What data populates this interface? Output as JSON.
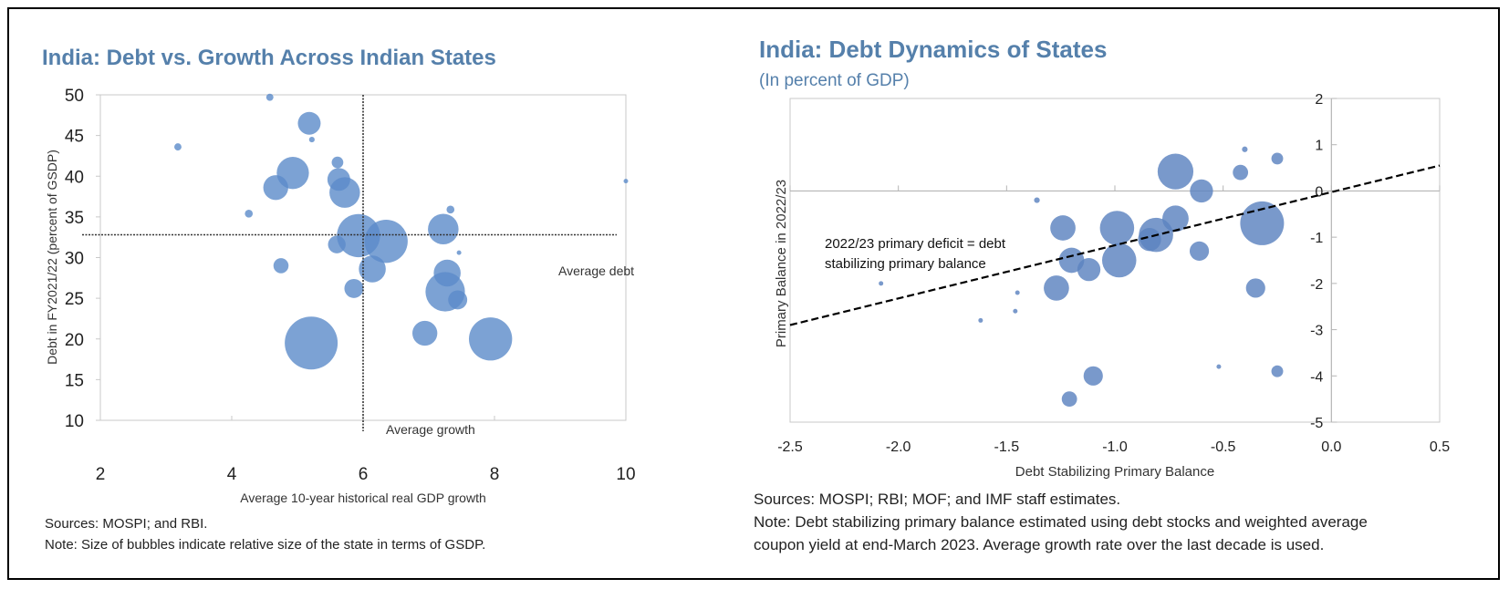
{
  "chart_data": [
    {
      "type": "scatter",
      "subtype": "bubble",
      "title": "India: Debt vs. Growth Across Indian States",
      "xlabel": "Average 10-year historical real GDP growth",
      "ylabel": "Debt in FY2021/22  (percent of GSDP)",
      "xlim": [
        2,
        10
      ],
      "ylim": [
        10,
        50
      ],
      "xticks": [
        "2",
        "4",
        "6",
        "8",
        "10"
      ],
      "yticks": [
        "10",
        "15",
        "20",
        "25",
        "30",
        "35",
        "40",
        "45",
        "50"
      ],
      "grid": false,
      "reference_lines": {
        "average_growth": 6.0,
        "average_debt": 32.8,
        "average_growth_label": "Average growth",
        "average_debt_label": "Average debt"
      },
      "bubble_color": "#5b8bc9",
      "points": [
        {
          "x": 4.58,
          "y": 49.7,
          "size": 0.5
        },
        {
          "x": 3.18,
          "y": 43.6,
          "size": 0.5
        },
        {
          "x": 5.18,
          "y": 46.5,
          "size": 5
        },
        {
          "x": 5.22,
          "y": 44.5,
          "size": 0.3
        },
        {
          "x": 4.26,
          "y": 35.4,
          "size": 0.6
        },
        {
          "x": 4.93,
          "y": 40.4,
          "size": 10
        },
        {
          "x": 4.67,
          "y": 38.6,
          "size": 6
        },
        {
          "x": 5.61,
          "y": 41.7,
          "size": 1.3
        },
        {
          "x": 5.63,
          "y": 39.6,
          "size": 5
        },
        {
          "x": 5.72,
          "y": 38.0,
          "size": 9
        },
        {
          "x": 5.93,
          "y": 32.7,
          "size": 18
        },
        {
          "x": 6.35,
          "y": 32.0,
          "size": 18
        },
        {
          "x": 5.6,
          "y": 31.6,
          "size": 3
        },
        {
          "x": 7.22,
          "y": 33.5,
          "size": 9
        },
        {
          "x": 7.33,
          "y": 35.9,
          "size": 0.6
        },
        {
          "x": 4.75,
          "y": 29.0,
          "size": 2.2
        },
        {
          "x": 6.14,
          "y": 28.6,
          "size": 7
        },
        {
          "x": 5.86,
          "y": 26.2,
          "size": 3.5
        },
        {
          "x": 7.28,
          "y": 28.1,
          "size": 7
        },
        {
          "x": 7.25,
          "y": 25.8,
          "size": 15
        },
        {
          "x": 7.44,
          "y": 24.8,
          "size": 3.5
        },
        {
          "x": 7.46,
          "y": 30.6,
          "size": 0.2
        },
        {
          "x": 5.21,
          "y": 19.5,
          "size": 27
        },
        {
          "x": 6.94,
          "y": 20.7,
          "size": 6
        },
        {
          "x": 7.94,
          "y": 20.0,
          "size": 18
        },
        {
          "x": 10.0,
          "y": 39.4,
          "size": 0.2
        }
      ],
      "sources": "Sources:  MOSPI; and RBI.",
      "note": "Note: Size of bubbles indicate relative size of the state in terms of GSDP."
    },
    {
      "type": "scatter",
      "subtype": "bubble",
      "title": "India: Debt Dynamics of States",
      "subtitle": "(In percent of GDP)",
      "xlabel": "Debt Stabilizing Primary Balance",
      "ylabel": "Primary Balance in 2022/23",
      "xlim": [
        -2.5,
        0.5
      ],
      "ylim": [
        -5,
        2
      ],
      "xticks": [
        "-2.5",
        "-2.0",
        "-1.5",
        "-1.0",
        "-0.5",
        "0.0",
        "0.5"
      ],
      "yticks": [
        "-5",
        "-4",
        "-3",
        "-2",
        "-1",
        "0",
        "1",
        "2"
      ],
      "grid": false,
      "bubble_color": "#5b82bf",
      "line": {
        "style": "dashed",
        "color": "#000000",
        "x": [
          -2.5,
          0.5
        ],
        "y": [
          -2.9,
          0.55
        ]
      },
      "annotation": [
        "2022/23 primary deficit = debt",
        "stabilizing primary balance"
      ],
      "points": [
        {
          "x": -0.72,
          "y": 0.42,
          "size": 12
        },
        {
          "x": -0.4,
          "y": 0.9,
          "size": 0.3
        },
        {
          "x": -0.25,
          "y": 0.7,
          "size": 1.3
        },
        {
          "x": -0.42,
          "y": 0.4,
          "size": 2.2
        },
        {
          "x": -0.6,
          "y": 0.0,
          "size": 5
        },
        {
          "x": -1.36,
          "y": -0.2,
          "size": 0.3
        },
        {
          "x": -1.24,
          "y": -0.8,
          "size": 6
        },
        {
          "x": -0.99,
          "y": -0.8,
          "size": 11
        },
        {
          "x": -0.72,
          "y": -0.6,
          "size": 6.5
        },
        {
          "x": -0.81,
          "y": -0.95,
          "size": 11
        },
        {
          "x": -0.84,
          "y": -1.05,
          "size": 5
        },
        {
          "x": -0.32,
          "y": -0.7,
          "size": 18
        },
        {
          "x": -0.61,
          "y": -1.3,
          "size": 3.5
        },
        {
          "x": -0.98,
          "y": -1.5,
          "size": 11
        },
        {
          "x": -1.2,
          "y": -1.5,
          "size": 6
        },
        {
          "x": -1.12,
          "y": -1.7,
          "size": 5
        },
        {
          "x": -0.35,
          "y": -2.1,
          "size": 3.5
        },
        {
          "x": -1.27,
          "y": -2.1,
          "size": 6
        },
        {
          "x": -1.45,
          "y": -2.2,
          "size": 0.15
        },
        {
          "x": -1.46,
          "y": -2.6,
          "size": 0.15
        },
        {
          "x": -1.62,
          "y": -2.8,
          "size": 0.15
        },
        {
          "x": -2.08,
          "y": -2.0,
          "size": 0.15
        },
        {
          "x": -0.52,
          "y": -3.8,
          "size": 0.15
        },
        {
          "x": -0.25,
          "y": -3.9,
          "size": 1.3
        },
        {
          "x": -1.1,
          "y": -4.0,
          "size": 3.5
        },
        {
          "x": -1.21,
          "y": -4.5,
          "size": 2.2
        }
      ],
      "sources": "Sources: MOSPI; RBI; MOF; and IMF staff estimates.",
      "note_lines": [
        "Note: Debt stabilizing primary balance estimated using debt stocks and weighted average",
        "coupon yield at end-March 2023. Average growth rate over the last decade is used."
      ]
    }
  ]
}
